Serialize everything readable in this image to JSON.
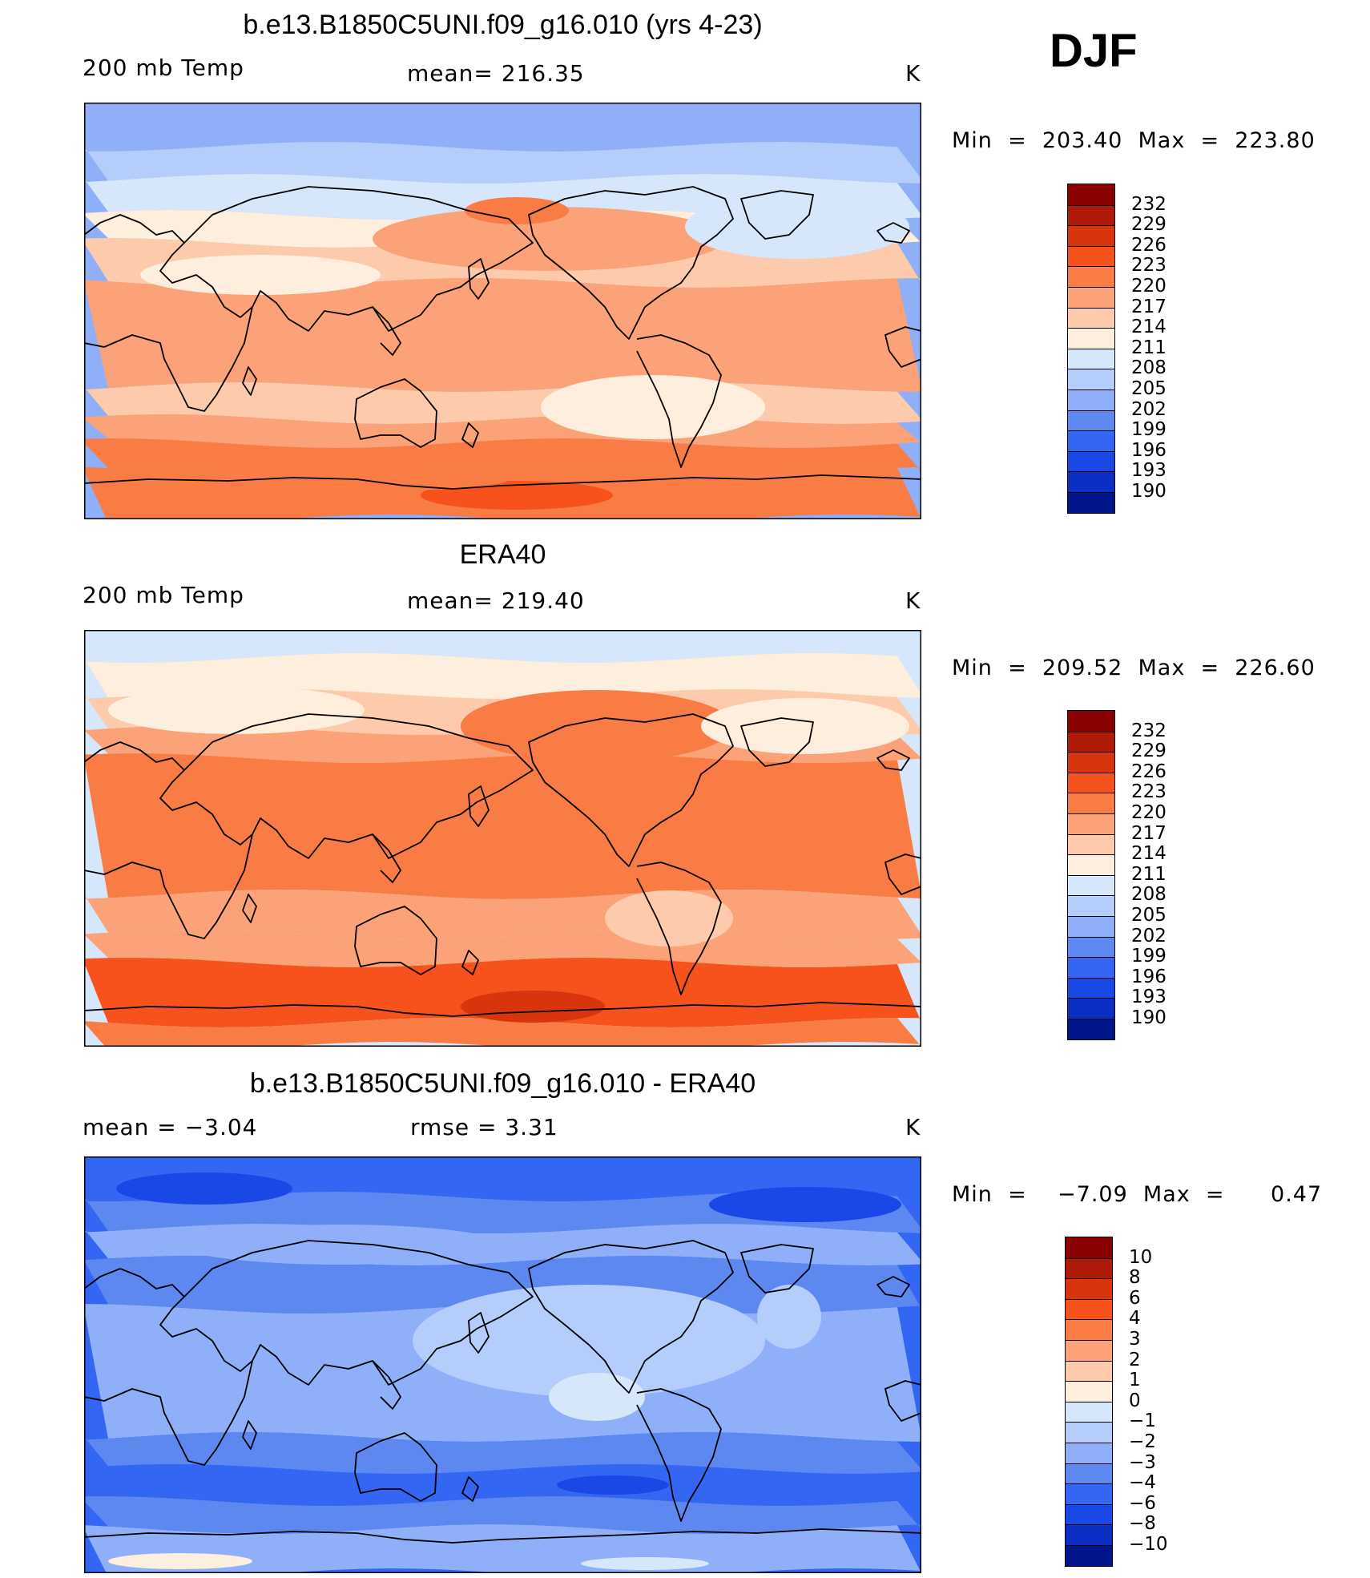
{
  "season": "DJF",
  "panels": [
    {
      "title": "b.e13.B1850C5UNI.f09_g16.010 (yrs 4-23)",
      "left_label": "200 mb Temp",
      "center_label": "mean=  216.35",
      "units": "K",
      "min_max": "Min  =  203.40  Max  =  223.80",
      "colorbar": "abs",
      "map_style": "model"
    },
    {
      "title": "ERA40",
      "left_label": "200 mb Temp",
      "center_label": "mean=  219.40",
      "units": "K",
      "min_max": "Min  =  209.52  Max  =  226.60",
      "colorbar": "abs",
      "map_style": "obs"
    },
    {
      "title": "b.e13.B1850C5UNI.f09_g16.010 - ERA40",
      "left_label": "mean  =     −3.04",
      "center_label": "rmse  =      3.31",
      "units": "K",
      "min_max": "Min  =    −7.09  Max  =      0.47",
      "colorbar": "diff",
      "map_style": "diff"
    }
  ],
  "colorbars": {
    "abs": {
      "colors": [
        "#8b0000",
        "#b01a08",
        "#d8350e",
        "#f7521c",
        "#fa7c45",
        "#fba278",
        "#fdcbab",
        "#feeedd",
        "#d6e6fb",
        "#b5cdfa",
        "#8fb0f8",
        "#5c88f0",
        "#3366f2",
        "#1a48e6",
        "#0a2fc2",
        "#00158a"
      ],
      "labels": [
        "232",
        "229",
        "226",
        "223",
        "220",
        "217",
        "214",
        "211",
        "208",
        "205",
        "202",
        "199",
        "196",
        "193",
        "190"
      ]
    },
    "diff": {
      "colors": [
        "#8b0000",
        "#b01a08",
        "#d8350e",
        "#f7521c",
        "#fa7c45",
        "#fba278",
        "#fdcbab",
        "#feeedd",
        "#d6e6fb",
        "#b5cdfa",
        "#8fb0f8",
        "#5c88f0",
        "#3366f2",
        "#1a48e6",
        "#0a2fc2",
        "#00158a"
      ],
      "labels": [
        "10",
        "8",
        "6",
        "4",
        "3",
        "2",
        "1",
        "0",
        "−1",
        "−2",
        "−3",
        "−4",
        "−6",
        "−8",
        "−10"
      ]
    }
  }
}
